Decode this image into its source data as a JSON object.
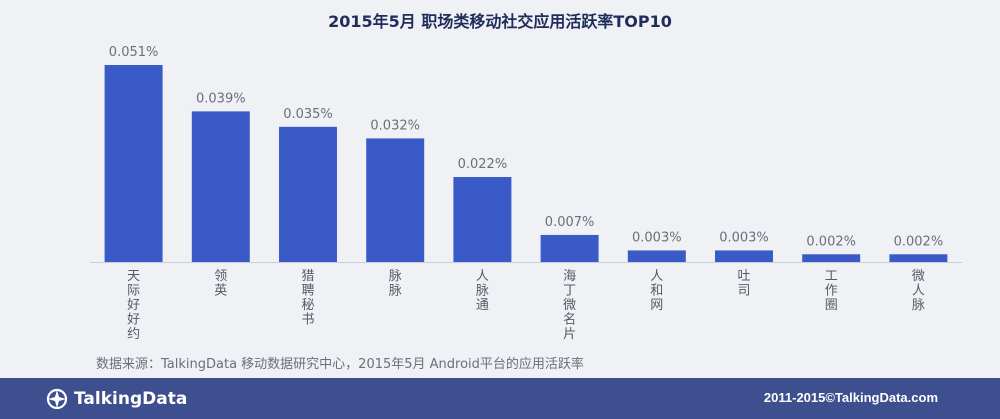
{
  "chart_data": {
    "type": "bar",
    "title": "2015年5月 职场类移动社交应用活跃率TOP10",
    "categories": [
      "天际好好约",
      "领英",
      "猎聘秘书",
      "脉脉",
      "人脉通",
      "海丁微名片",
      "人和网",
      "吐司",
      "工作圈",
      "微人脉"
    ],
    "values": [
      0.051,
      0.039,
      0.035,
      0.032,
      0.022,
      0.007,
      0.003,
      0.003,
      0.002,
      0.002
    ],
    "data_labels": [
      "0.051%",
      "0.039%",
      "0.035%",
      "0.032%",
      "0.022%",
      "0.007%",
      "0.003%",
      "0.003%",
      "0.002%",
      "0.002%"
    ],
    "unit": "%",
    "ylim": [
      0,
      0.051
    ],
    "grid": false,
    "bar_color": "#3a5bc7"
  },
  "source_note": "数据来源：TalkingData 移动数据研究中心，2015年5月 Android平台的应用活跃率",
  "footer": {
    "logo_text": "TalkingData",
    "logo_icon": "talkingdata-logo-icon",
    "copyright": "2011-2015©TalkingData.com",
    "background": "#3e4f8f"
  }
}
